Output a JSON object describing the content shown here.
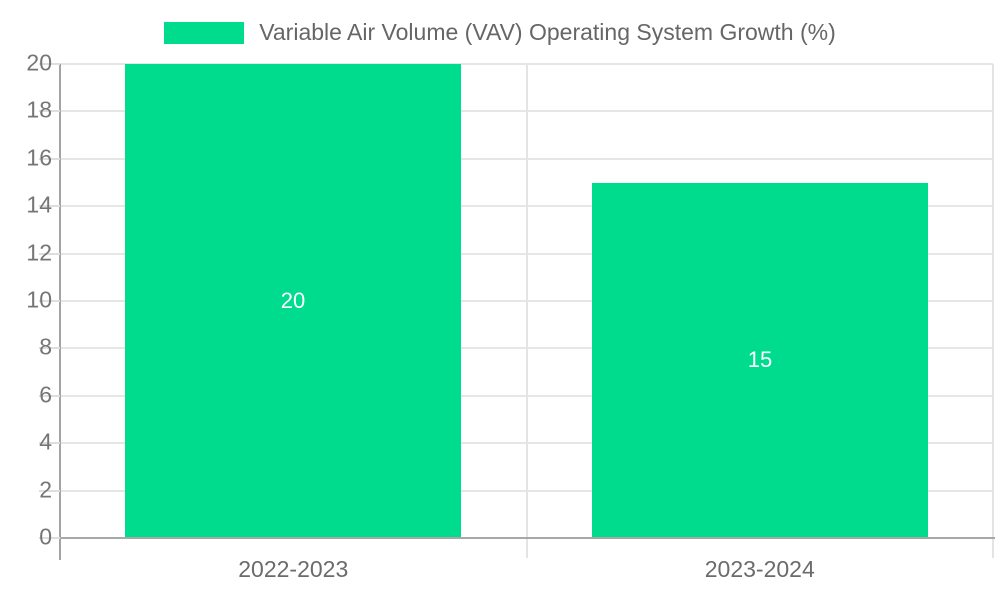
{
  "legend": {
    "swatch_color": "#00dc8e",
    "label": "Variable Air Volume (VAV) Operating System Growth (%)"
  },
  "chart_data": {
    "type": "bar",
    "title": "Variable Air Volume (VAV) Operating System Growth (%)",
    "categories": [
      "2022-2023",
      "2023-2024"
    ],
    "values": [
      20,
      15
    ],
    "bar_value_labels": [
      "20",
      "15"
    ],
    "ylim": [
      0,
      20
    ],
    "yticks": [
      0,
      2,
      4,
      6,
      8,
      10,
      12,
      14,
      16,
      18,
      20
    ],
    "bar_color": "#00dc8e",
    "value_label_color": "#ffffff",
    "grid": "on",
    "legend_position": "top-center",
    "xlabel": "",
    "ylabel": ""
  }
}
